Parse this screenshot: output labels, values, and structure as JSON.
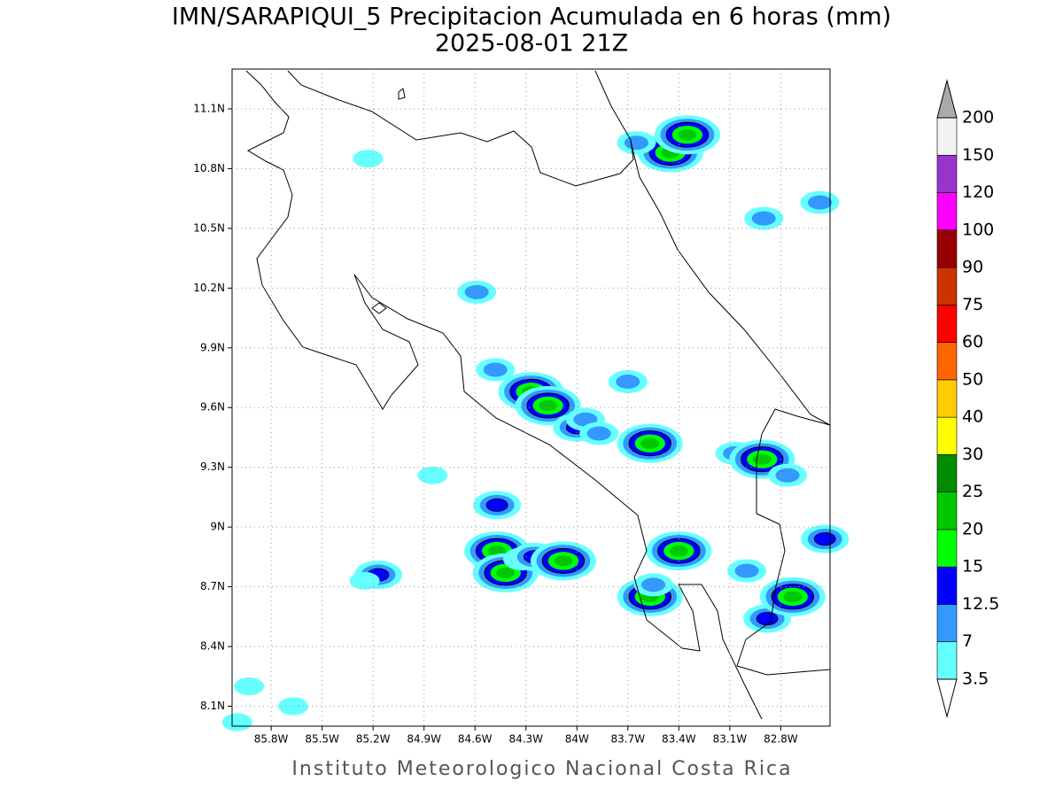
{
  "chart_data": {
    "type": "map",
    "title": "IMN/SARAPIQUI_5 Precipitacion Acumulada en 6 horas (mm)",
    "subtitle": "2025-08-01 21Z",
    "credit": "Instituto Meteorologico Nacional Costa Rica",
    "xlim": [
      -86.03,
      -82.51
    ],
    "ylim": [
      8.0,
      11.3
    ],
    "xticks": [
      {
        "value": -85.8,
        "label": "85.8W"
      },
      {
        "value": -85.5,
        "label": "85.5W"
      },
      {
        "value": -85.2,
        "label": "85.2W"
      },
      {
        "value": -84.9,
        "label": "84.9W"
      },
      {
        "value": -84.6,
        "label": "84.6W"
      },
      {
        "value": -84.3,
        "label": "84.3W"
      },
      {
        "value": -84.0,
        "label": "84W"
      },
      {
        "value": -83.7,
        "label": "83.7W"
      },
      {
        "value": -83.4,
        "label": "83.4W"
      },
      {
        "value": -83.1,
        "label": "83.1W"
      },
      {
        "value": -82.8,
        "label": "82.8W"
      }
    ],
    "yticks": [
      {
        "value": 8.1,
        "label": "8.1N"
      },
      {
        "value": 8.4,
        "label": "8.4N"
      },
      {
        "value": 8.7,
        "label": "8.7N"
      },
      {
        "value": 9.0,
        "label": "9N"
      },
      {
        "value": 9.3,
        "label": "9.3N"
      },
      {
        "value": 9.6,
        "label": "9.6N"
      },
      {
        "value": 9.9,
        "label": "9.9N"
      },
      {
        "value": 10.2,
        "label": "10.2N"
      },
      {
        "value": 10.5,
        "label": "10.5N"
      },
      {
        "value": 10.8,
        "label": "10.8N"
      },
      {
        "value": 11.1,
        "label": "11.1N"
      }
    ],
    "grid": true,
    "colorbar": {
      "levels": [
        3.5,
        7,
        12.5,
        15,
        20,
        25,
        30,
        40,
        50,
        60,
        75,
        90,
        100,
        120,
        150,
        200
      ],
      "colors": [
        "#66ffff",
        "#3399ff",
        "#0000ff",
        "#00ff00",
        "#00c800",
        "#008c00",
        "#ffff00",
        "#ffcc00",
        "#ff6600",
        "#ff0000",
        "#cc3300",
        "#990000",
        "#ff00ff",
        "#9933cc",
        "#f2f2f2"
      ],
      "under_color": "#ffffff",
      "over_color": "#aaaaaa"
    },
    "points": {
      "lon": [
        -83.45,
        -83.35,
        -83.65,
        -82.9,
        -82.57,
        -85.23,
        -84.59,
        -84.48,
        -84.27,
        -84.17,
        -84.0,
        -83.95,
        -83.87,
        -83.7,
        -83.57,
        -83.07,
        -82.91,
        -82.76,
        -84.47,
        -84.85,
        -84.47,
        -84.42,
        -84.32,
        -84.25,
        -84.08,
        -85.17,
        -85.25,
        -83.4,
        -83.57,
        -83.55,
        -83.0,
        -82.88,
        -82.73,
        -82.54,
        -85.93,
        -85.67,
        -86.0
      ],
      "lat": [
        10.88,
        10.97,
        10.93,
        10.55,
        10.63,
        10.85,
        10.18,
        9.79,
        9.68,
        9.61,
        9.5,
        9.54,
        9.47,
        9.73,
        9.42,
        9.37,
        9.34,
        9.26,
        9.11,
        9.26,
        8.88,
        8.77,
        8.84,
        8.85,
        8.83,
        8.76,
        8.73,
        8.88,
        8.65,
        8.71,
        8.78,
        8.54,
        8.65,
        8.94,
        8.2,
        8.1,
        8.02
      ],
      "values": [
        20,
        20,
        7,
        7,
        7,
        3.5,
        7,
        7,
        20,
        20,
        12.5,
        7,
        7,
        7,
        20,
        7,
        20,
        7,
        12.5,
        3.5,
        20,
        20,
        7,
        12.5,
        20,
        12.5,
        3.5,
        20,
        20,
        7,
        7,
        12.5,
        20,
        12.5,
        3.5,
        3.5,
        3.5
      ]
    }
  }
}
